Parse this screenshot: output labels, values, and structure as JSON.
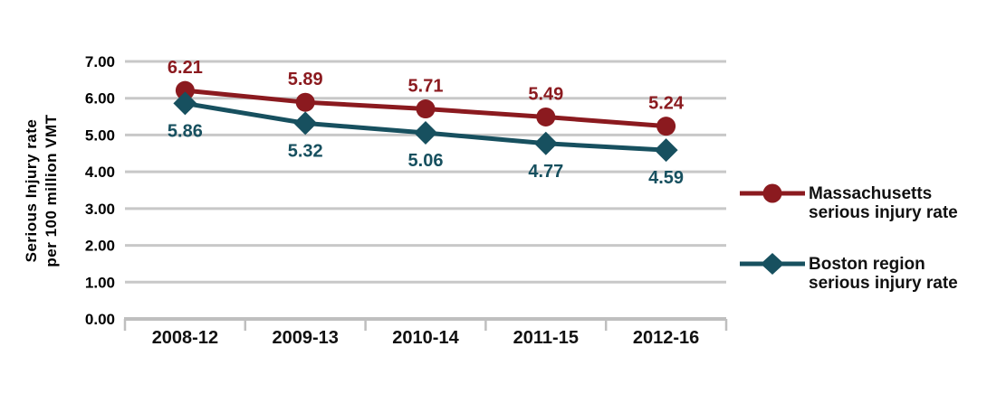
{
  "chart_data": {
    "type": "line",
    "title": "",
    "categories": [
      "2008-12",
      "2009-13",
      "2010-14",
      "2011-15",
      "2012-16"
    ],
    "series": [
      {
        "name": "Massachusetts serious injury rate",
        "legend_lines": [
          "Massachusetts",
          "serious injury rate"
        ],
        "values": [
          6.21,
          5.89,
          5.71,
          5.49,
          5.24
        ],
        "color": "#8b1a1f",
        "marker": "circle",
        "data_label_position": "above"
      },
      {
        "name": "Boston region serious injury rate",
        "legend_lines": [
          "Boston region",
          "serious injury rate"
        ],
        "values": [
          5.86,
          5.32,
          5.06,
          4.77,
          4.59
        ],
        "color": "#17505f",
        "marker": "diamond",
        "data_label_position": "below"
      }
    ],
    "xlabel": "",
    "ylabel_lines": [
      "Serious Injury rate",
      "per 100 million VMT"
    ],
    "y_ticks": [
      "7.00",
      "6.00",
      "5.00",
      "4.00",
      "3.00",
      "2.00",
      "1.00",
      "0.00"
    ],
    "ylim": [
      0,
      7
    ],
    "grid": true,
    "legend_position": "right",
    "colors": {
      "gridline": "#c8c8c8",
      "axis": "#bfbfbf",
      "tick_text": "#000000"
    }
  }
}
